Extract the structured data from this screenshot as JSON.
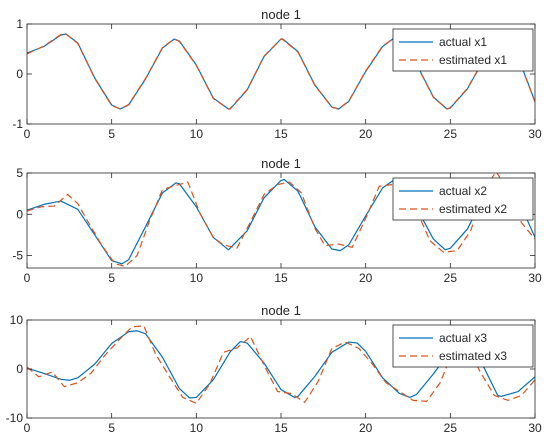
{
  "colors": {
    "actual": "#0072BD",
    "estimated": "#D95319",
    "axis": "#262626"
  },
  "chart_data": [
    {
      "type": "line",
      "title": "node 1",
      "xlim": [
        0,
        30
      ],
      "ylim": [
        -1,
        1
      ],
      "xticks": [
        "0",
        "5",
        "10",
        "15",
        "20",
        "25",
        "30"
      ],
      "yticks": [
        "-1",
        "0",
        "1"
      ],
      "legend": {
        "position": "top-right",
        "entries": [
          "actual x1",
          "estimated x1"
        ]
      },
      "series": [
        {
          "name": "actual x1",
          "style": "solid",
          "x": [
            0,
            1,
            2,
            2.3,
            3,
            4,
            5,
            5.5,
            6,
            7,
            8,
            8.7,
            9,
            10,
            11,
            11.9,
            12,
            13,
            14,
            15,
            15.1,
            16,
            17,
            18,
            18.4,
            19,
            20,
            21,
            21.6,
            22,
            23,
            24,
            24.8,
            25,
            26,
            27,
            28,
            29,
            30
          ],
          "y": [
            0.42,
            0.55,
            0.78,
            0.8,
            0.62,
            -0.08,
            -0.62,
            -0.7,
            -0.62,
            -0.1,
            0.52,
            0.7,
            0.66,
            0.18,
            -0.48,
            -0.7,
            -0.7,
            -0.32,
            0.35,
            0.7,
            0.7,
            0.45,
            -0.22,
            -0.66,
            -0.7,
            -0.55,
            0.05,
            0.55,
            0.7,
            0.64,
            0.2,
            -0.46,
            -0.7,
            -0.68,
            -0.3,
            0.3,
            0.66,
            0.34,
            -0.55
          ]
        },
        {
          "name": "estimated x1",
          "style": "dashed",
          "x": [
            0,
            1,
            2,
            2.3,
            3,
            4,
            5,
            5.5,
            6,
            7,
            8,
            8.7,
            9,
            10,
            11,
            11.9,
            12,
            13,
            14,
            15,
            15.1,
            16,
            17,
            18,
            18.4,
            19,
            20,
            21,
            21.6,
            22,
            23,
            24,
            24.8,
            25,
            26,
            27,
            28,
            29,
            30
          ],
          "y": [
            0.4,
            0.56,
            0.79,
            0.8,
            0.61,
            -0.09,
            -0.63,
            -0.7,
            -0.61,
            -0.09,
            0.53,
            0.7,
            0.65,
            0.17,
            -0.49,
            -0.7,
            -0.69,
            -0.31,
            0.36,
            0.7,
            0.69,
            0.44,
            -0.23,
            -0.66,
            -0.7,
            -0.54,
            0.06,
            0.56,
            0.7,
            0.63,
            0.19,
            -0.47,
            -0.7,
            -0.67,
            -0.29,
            0.31,
            0.66,
            0.33,
            -0.56
          ]
        }
      ]
    },
    {
      "type": "line",
      "title": "node 1",
      "xlim": [
        0,
        30
      ],
      "ylim": [
        -6.5,
        5
      ],
      "xticks": [
        "0",
        "5",
        "10",
        "15",
        "20",
        "25",
        "30"
      ],
      "yticks": [
        "-5",
        "0",
        "5"
      ],
      "legend": {
        "position": "top-right",
        "entries": [
          "actual x2",
          "estimated x2"
        ]
      },
      "series": [
        {
          "name": "actual x2",
          "style": "solid",
          "x": [
            0,
            1,
            2,
            3,
            4,
            5,
            5.6,
            6,
            7,
            8,
            8.8,
            9,
            10,
            11,
            11.9,
            13,
            14,
            15,
            15.2,
            16,
            17,
            18,
            18.5,
            19,
            20,
            21,
            21.7,
            22,
            23,
            24,
            24.7,
            25,
            26,
            27,
            28,
            29,
            30
          ],
          "y": [
            0.5,
            1.2,
            1.6,
            0.6,
            -2.5,
            -5.6,
            -6.0,
            -5.5,
            -1.5,
            2.6,
            3.8,
            3.7,
            0.9,
            -2.8,
            -4.3,
            -2.0,
            2.0,
            4.1,
            4.2,
            2.8,
            -1.5,
            -4.2,
            -4.4,
            -3.7,
            -0.2,
            3.2,
            4.2,
            3.9,
            0.8,
            -3.0,
            -4.3,
            -4.1,
            -1.8,
            2.2,
            4.2,
            1.8,
            -2.8
          ]
        },
        {
          "name": "estimated x2",
          "style": "dashed",
          "x": [
            0,
            0.8,
            1.6,
            2.4,
            3,
            3.6,
            4.4,
            5.2,
            5.8,
            6.5,
            7.2,
            8,
            8.8,
            9.5,
            10.2,
            11,
            11.6,
            12.4,
            13.2,
            14,
            14.8,
            15.5,
            16.2,
            17,
            17.6,
            18.4,
            19.2,
            20,
            20.8,
            21.6,
            22.3,
            23,
            23.8,
            24.6,
            25.4,
            26.2,
            27,
            27.7,
            28.4,
            29.2,
            30
          ],
          "y": [
            0.4,
            0.9,
            1.0,
            2.4,
            1.3,
            -0.9,
            -3.7,
            -6.0,
            -6.3,
            -5.0,
            -1.0,
            3.0,
            3.5,
            3.9,
            0.2,
            -2.8,
            -3.7,
            -4.1,
            -0.9,
            2.4,
            3.6,
            3.9,
            2.6,
            -1.7,
            -3.8,
            -3.6,
            -4.0,
            -0.5,
            3.4,
            3.6,
            4.3,
            0.5,
            -3.2,
            -4.6,
            -4.4,
            -2.0,
            2.8,
            5.2,
            2.8,
            -1.0,
            -3.0
          ]
        }
      ]
    },
    {
      "type": "line",
      "title": "node 1",
      "xlim": [
        0,
        30
      ],
      "ylim": [
        -10,
        10
      ],
      "xticks": [
        "0",
        "5",
        "10",
        "15",
        "20",
        "25",
        "30"
      ],
      "yticks": [
        "-10",
        "0",
        "10"
      ],
      "legend": {
        "position": "top-right",
        "entries": [
          "actual x3",
          "estimated x3"
        ]
      },
      "series": [
        {
          "name": "actual x3",
          "style": "solid",
          "x": [
            0,
            1,
            2,
            2.5,
            3,
            4,
            5,
            6,
            6.5,
            7,
            8,
            9,
            9.6,
            10,
            11,
            12,
            12.6,
            13,
            14,
            15,
            15.8,
            16,
            17,
            18,
            19,
            19.5,
            20,
            21,
            22,
            22.6,
            23,
            24,
            25,
            26,
            27,
            27.8,
            28,
            29,
            30
          ],
          "y": [
            0.2,
            -0.9,
            -2.1,
            -2.3,
            -1.8,
            1.0,
            5.2,
            7.6,
            7.8,
            7.2,
            2.4,
            -4.0,
            -5.9,
            -5.8,
            -2.2,
            3.5,
            5.6,
            5.3,
            1.2,
            -4.2,
            -5.8,
            -5.6,
            -1.5,
            3.4,
            5.5,
            5.3,
            3.6,
            -1.8,
            -5.0,
            -5.8,
            -5.2,
            -1.0,
            3.6,
            4.8,
            0.2,
            -5.4,
            -5.6,
            -4.6,
            -1.6
          ]
        },
        {
          "name": "estimated x3",
          "style": "dashed",
          "x": [
            0,
            0.7,
            1.5,
            2.2,
            3,
            3.8,
            4.6,
            5.4,
            6.2,
            6.9,
            7.6,
            8.4,
            9.2,
            10,
            10.8,
            11.6,
            12.4,
            13.2,
            14,
            14.8,
            15.6,
            16.4,
            17.2,
            18,
            18.8,
            19.6,
            20.4,
            21.2,
            22,
            22.8,
            23.6,
            24.4,
            25.2,
            26,
            26.8,
            27.6,
            28.4,
            29.2,
            30
          ],
          "y": [
            0.4,
            -1.6,
            -0.6,
            -3.6,
            -2.8,
            -0.8,
            2.8,
            5.8,
            8.6,
            8.8,
            3.0,
            -1.5,
            -5.8,
            -7.0,
            -3.0,
            3.4,
            4.3,
            6.6,
            0.8,
            -4.6,
            -5.0,
            -6.8,
            -2.5,
            4.2,
            5.5,
            4.2,
            1.0,
            -2.8,
            -4.6,
            -6.4,
            -6.6,
            -2.8,
            4.0,
            4.5,
            -0.8,
            -5.4,
            -6.4,
            -5.4,
            -2.2
          ]
        }
      ]
    }
  ]
}
